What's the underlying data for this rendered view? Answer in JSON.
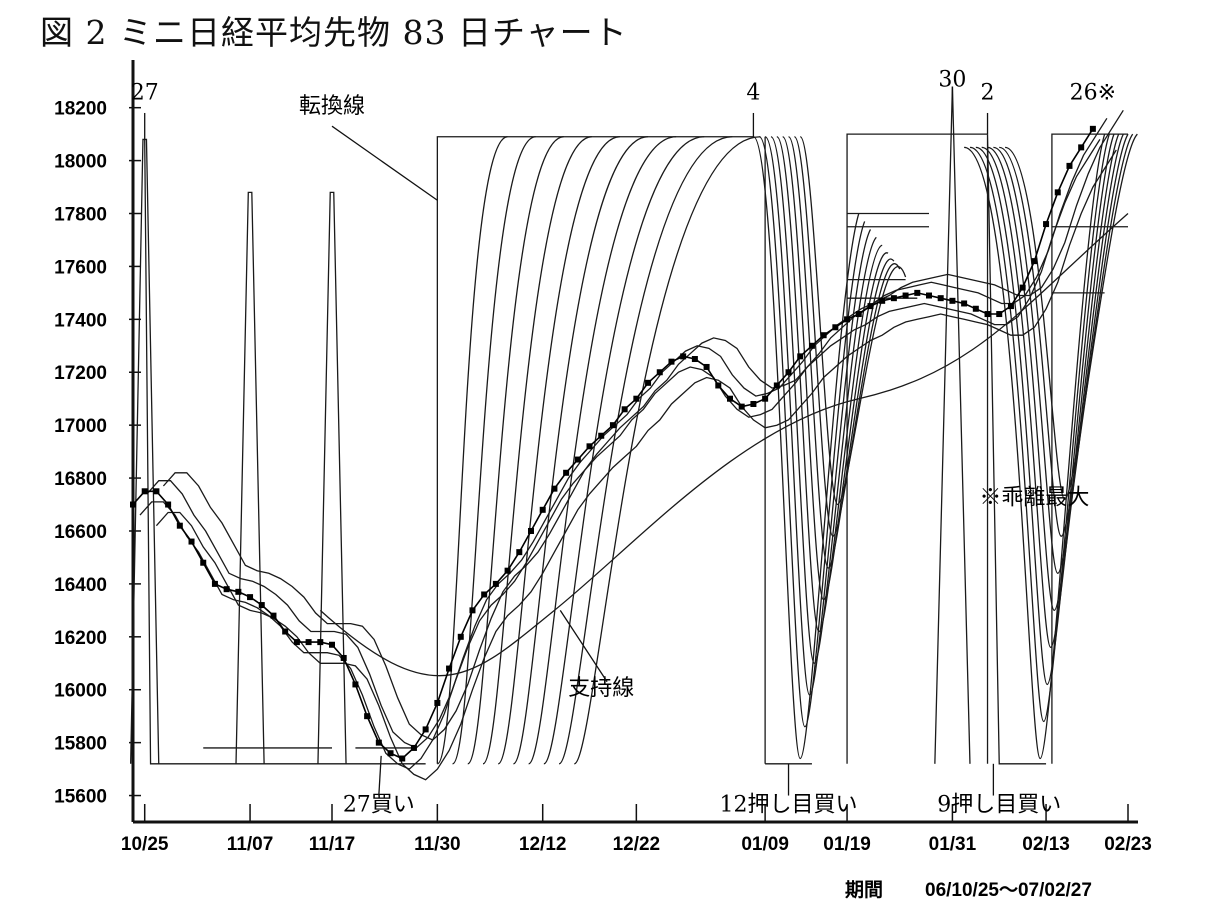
{
  "chart_data": {
    "type": "line",
    "title": "図 2 ミニ日経平均先物 83 日チャート",
    "period_label": "期間",
    "period_value": "06/10/25～07/02/27",
    "grid": false,
    "ylim": [
      15500,
      18350
    ],
    "y_ticks": [
      15600,
      15800,
      16000,
      16200,
      16400,
      16600,
      16800,
      17000,
      17200,
      17400,
      17600,
      17800,
      18000,
      18200
    ],
    "x_ticks": [
      "10/25",
      "11/07",
      "11/17",
      "11/30",
      "12/12",
      "12/22",
      "01/09",
      "01/19",
      "01/31",
      "02/13",
      "02/23"
    ],
    "x_range": [
      0,
      85
    ],
    "x_tick_positions": [
      1,
      10,
      17,
      26,
      35,
      43,
      54,
      61,
      70,
      78,
      85
    ],
    "series": [
      {
        "marker": "square",
        "x": [
          0,
          1,
          2,
          3,
          4,
          5,
          6,
          7,
          8,
          9,
          10,
          11,
          12,
          13,
          14,
          15,
          16,
          17,
          18,
          19,
          20,
          21,
          22,
          23,
          24,
          25,
          26,
          27,
          28,
          29,
          30,
          31,
          32,
          33,
          34,
          35,
          36,
          37,
          38,
          39,
          40,
          41,
          42,
          43,
          44,
          45,
          46,
          47,
          48,
          49,
          50,
          51,
          52,
          53,
          54,
          55,
          56,
          57,
          58,
          59,
          60,
          61,
          62,
          63,
          64,
          65,
          66,
          67,
          68,
          69,
          70,
          71,
          72,
          73,
          74,
          75,
          76,
          77,
          78,
          79,
          80,
          81,
          82
        ],
        "values": [
          16700,
          16750,
          16750,
          16700,
          16620,
          16560,
          16480,
          16400,
          16380,
          16370,
          16350,
          16320,
          16280,
          16220,
          16180,
          16180,
          16180,
          16170,
          16120,
          16020,
          15900,
          15800,
          15760,
          15740,
          15780,
          15850,
          15950,
          16080,
          16200,
          16300,
          16360,
          16400,
          16450,
          16520,
          16600,
          16680,
          16760,
          16820,
          16870,
          16920,
          16960,
          17000,
          17060,
          17100,
          17160,
          17200,
          17240,
          17260,
          17250,
          17220,
          17150,
          17100,
          17070,
          17080,
          17100,
          17150,
          17200,
          17260,
          17300,
          17340,
          17370,
          17400,
          17420,
          17450,
          17470,
          17480,
          17490,
          17500,
          17490,
          17480,
          17470,
          17460,
          17440,
          17420,
          17420,
          17450,
          17520,
          17620,
          17760,
          17880,
          17980,
          18050,
          18120
        ]
      }
    ],
    "annotations": [
      {
        "text": "27",
        "x": 1,
        "y": 18230
      },
      {
        "text": "4",
        "x": 53,
        "y": 18230
      },
      {
        "text": "30",
        "x": 70,
        "y": 18280
      },
      {
        "text": "2",
        "x": 73,
        "y": 18230
      },
      {
        "text": "26※",
        "x": 82,
        "y": 18230
      },
      {
        "text": "転換線",
        "x": 17,
        "y": 18180
      },
      {
        "text": "※乖離最大",
        "x": 77,
        "y": 16700
      },
      {
        "text": "支持線",
        "x": 40,
        "y": 15980
      },
      {
        "text": "27買い",
        "x": 21,
        "y": 15540
      },
      {
        "text": "12押し目買い",
        "x": 56,
        "y": 15540
      },
      {
        "text": "9押し目買い",
        "x": 74,
        "y": 15540
      }
    ]
  }
}
